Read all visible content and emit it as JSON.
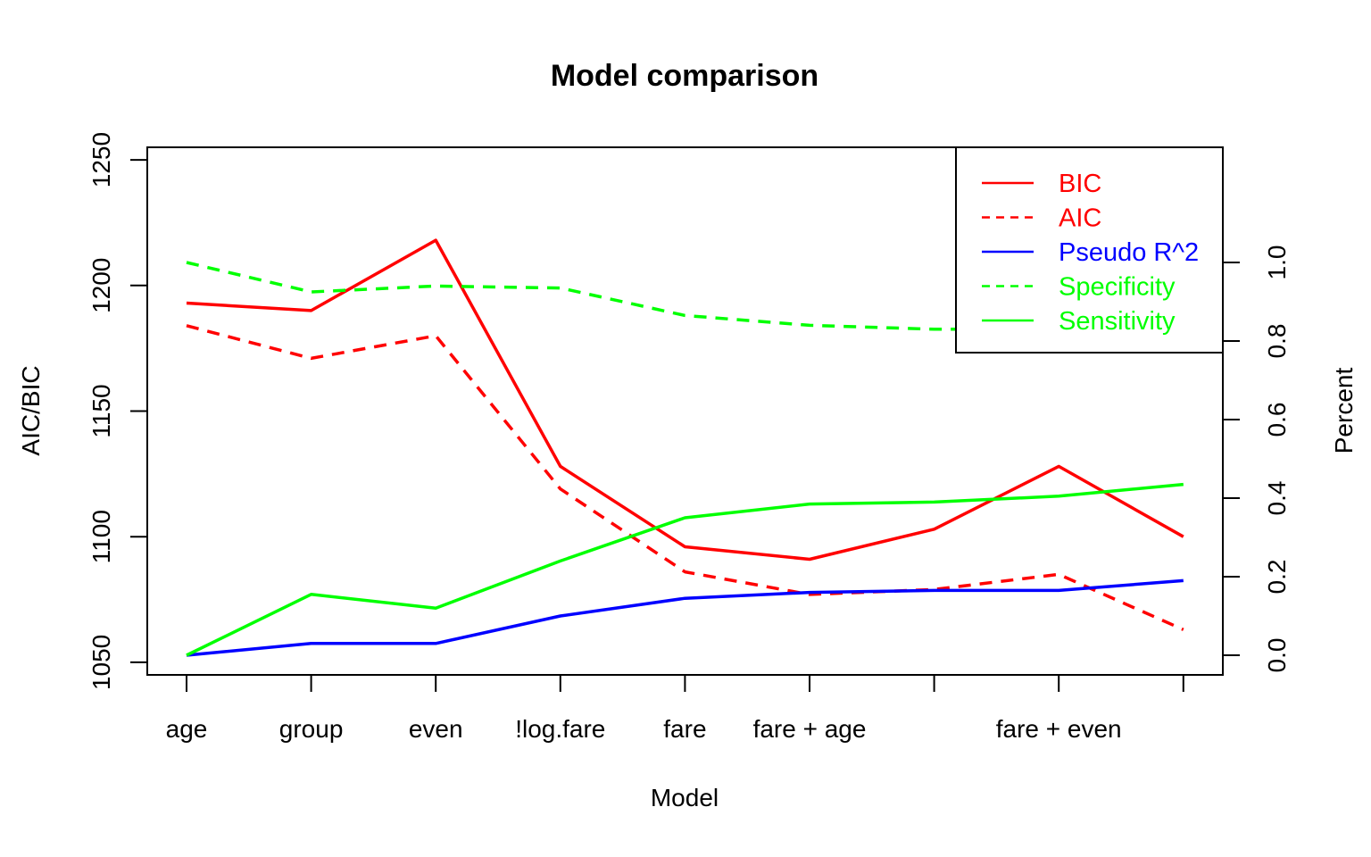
{
  "chart_data": {
    "type": "line",
    "title": "Model comparison",
    "xlabel": "Model",
    "ylabel_left": "AIC/BIC",
    "ylabel_right": "Percent",
    "categories": [
      "age",
      "group",
      "even",
      "!log.fare",
      "fare",
      "fare + age",
      "",
      "fare + even",
      ""
    ],
    "y_left": {
      "lim": [
        1045,
        1255
      ],
      "ticks": [
        1050,
        1100,
        1150,
        1200,
        1250
      ]
    },
    "y_right": {
      "lim": [
        0,
        1.0
      ],
      "ticks": [
        0.0,
        0.2,
        0.4,
        0.6,
        0.8,
        1.0
      ]
    },
    "series": [
      {
        "name": "BIC",
        "axis": "left",
        "color": "#ff0000",
        "dash": "solid",
        "values": [
          1193,
          1190,
          1218,
          1128,
          1096,
          1091,
          1103,
          1128,
          1100
        ]
      },
      {
        "name": "AIC",
        "axis": "left",
        "color": "#ff0000",
        "dash": "dashed",
        "values": [
          1184,
          1171,
          1180,
          1119,
          1086,
          1077,
          1079,
          1085,
          1063
        ]
      },
      {
        "name": "Pseudo R^2",
        "axis": "right",
        "color": "#0000ff",
        "dash": "solid",
        "values": [
          0.0,
          0.03,
          0.03,
          0.1,
          0.145,
          0.16,
          0.165,
          0.165,
          0.19
        ]
      },
      {
        "name": "Specificity",
        "axis": "right",
        "color": "#00ff00",
        "dash": "dashed",
        "values": [
          1.0,
          0.925,
          0.94,
          0.935,
          0.865,
          0.84,
          0.83,
          0.83,
          0.82
        ]
      },
      {
        "name": "Sensitivity",
        "axis": "right",
        "color": "#00ff00",
        "dash": "solid",
        "values": [
          0.0,
          0.155,
          0.12,
          0.24,
          0.35,
          0.385,
          0.39,
          0.405,
          0.435
        ]
      }
    ],
    "legend": {
      "position": "top-right",
      "entries": [
        {
          "label": "BIC",
          "color": "#ff0000",
          "text_color": "#ff0000",
          "dash": "solid"
        },
        {
          "label": "AIC",
          "color": "#ff0000",
          "text_color": "#ff0000",
          "dash": "dashed"
        },
        {
          "label": "Pseudo R^2",
          "color": "#0000ff",
          "text_color": "#0000ff",
          "dash": "solid"
        },
        {
          "label": "Specificity",
          "color": "#00ff00",
          "text_color": "#00ff00",
          "dash": "dashed"
        },
        {
          "label": "Sensitivity",
          "color": "#00ff00",
          "text_color": "#00ff00",
          "dash": "solid"
        }
      ]
    },
    "grid": false
  }
}
